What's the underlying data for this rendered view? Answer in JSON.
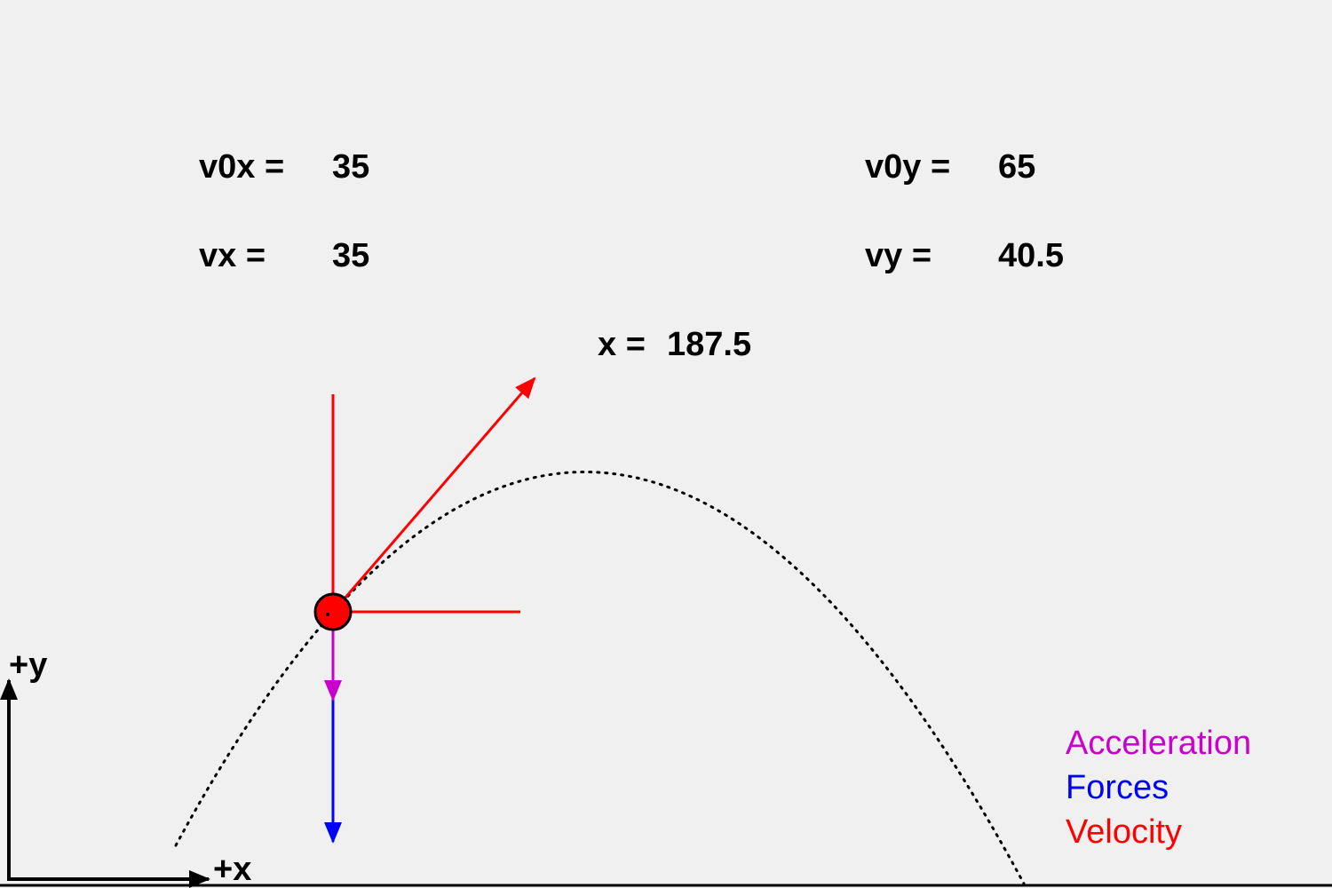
{
  "readouts": {
    "v0x_label": "v0x =",
    "v0x_value": "35",
    "v0y_label": "v0y =",
    "v0y_value": "65",
    "vx_label": "vx =",
    "vx_value": "35",
    "vy_label": "vy =",
    "vy_value": "40.5",
    "x_label": "x =",
    "x_value": "187.5"
  },
  "axes": {
    "y_label": "+y",
    "x_label": "+x"
  },
  "legend": {
    "acceleration": "Acceleration",
    "forces": "Forces",
    "velocity": "Velocity"
  },
  "colors": {
    "acceleration": "#cc00cc",
    "forces": "#0000ff",
    "velocity": "#ff0000",
    "ball": "#ff0000",
    "background": "#f0f0f0",
    "text": "#000000"
  }
}
